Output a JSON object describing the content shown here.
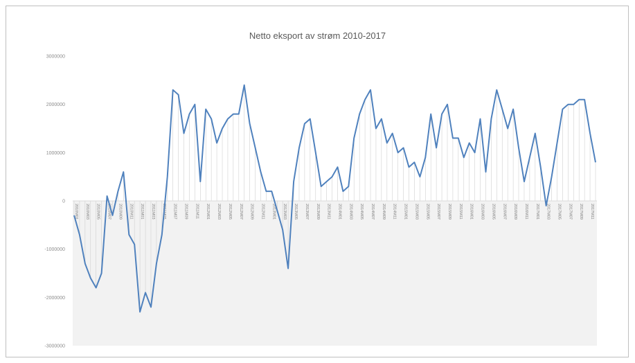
{
  "chart_data": {
    "type": "line",
    "title": "Netto eksport av strøm 2010-2017",
    "xlabel": "",
    "ylabel": "",
    "ylim": [
      -3000000,
      3000000
    ],
    "y_ticks": [
      3000000,
      2000000,
      1000000,
      0,
      -1000000,
      -2000000,
      -3000000
    ],
    "y_tick_labels": [
      "3000000",
      "2000000",
      "1000000",
      "0",
      "-1000000",
      "-2000000",
      "-3000000"
    ],
    "line_color": "#4f81bd",
    "grid": false,
    "drop_lines": true,
    "negative_band_color": "#f2f2f2",
    "x": [
      "2010M01",
      "2010M02",
      "2010M03",
      "2010M04",
      "2010M05",
      "2010M06",
      "2010M07",
      "2010M08",
      "2010M09",
      "2010M10",
      "2010M11",
      "2010M12",
      "2011M01",
      "2011M02",
      "2011M03",
      "2011M04",
      "2011M05",
      "2011M06",
      "2011M07",
      "2011M08",
      "2011M09",
      "2011M10",
      "2011M11",
      "2011M12",
      "2012M01",
      "2012M02",
      "2012M03",
      "2012M04",
      "2012M05",
      "2012M06",
      "2012M07",
      "2012M08",
      "2012M09",
      "2012M10",
      "2012M11",
      "2012M12",
      "2013M01",
      "2013M02",
      "2013M03",
      "2013M04",
      "2013M05",
      "2013M06",
      "2013M07",
      "2013M08",
      "2013M09",
      "2013M10",
      "2013M11",
      "2013M12",
      "2014M01",
      "2014M02",
      "2014M03",
      "2014M04",
      "2014M05",
      "2014M06",
      "2014M07",
      "2014M08",
      "2014M09",
      "2014M10",
      "2014M11",
      "2014M12",
      "2015M01",
      "2015M02",
      "2015M03",
      "2015M04",
      "2015M05",
      "2015M06",
      "2015M07",
      "2015M08",
      "2015M09",
      "2015M10",
      "2015M11",
      "2015M12",
      "2016M01",
      "2016M02",
      "2016M03",
      "2016M04",
      "2016M05",
      "2016M06",
      "2016M07",
      "2016M08",
      "2016M09",
      "2016M10",
      "2016M11",
      "2016M12",
      "2017M01",
      "2017M02",
      "2017M03",
      "2017M04",
      "2017M05",
      "2017M06",
      "2017M07",
      "2017M08",
      "2017M09",
      "2017M10",
      "2017M11",
      "2017M12"
    ],
    "x_tick_labels": [
      "2010M01",
      "2010M03",
      "2010M05",
      "2010M07",
      "2010M09",
      "2010M11",
      "2011M01",
      "2011M03",
      "2011M05",
      "2011M07",
      "2011M09",
      "2011M11",
      "2012M01",
      "2012M03",
      "2012M05",
      "2012M07",
      "2012M09",
      "2012M11",
      "2013M01",
      "2013M03",
      "2013M05",
      "2013M07",
      "2013M09",
      "2013M11",
      "2014M01",
      "2014M03",
      "2014M05",
      "2014M07",
      "2014M09",
      "2014M11",
      "2015M01",
      "2015M03",
      "2015M05",
      "2015M07",
      "2015M09",
      "2015M11",
      "2016M01",
      "2016M03",
      "2016M05",
      "2016M07",
      "2016M09",
      "2016M11",
      "2017M01",
      "2017M03",
      "2017M05",
      "2017M07",
      "2017M09",
      "2017M11"
    ],
    "series": [
      {
        "values": [
          -300000,
          -700000,
          -1300000,
          -1600000,
          -1800000,
          -1500000,
          100000,
          -300000,
          200000,
          600000,
          -700000,
          -900000,
          -2300000,
          -1900000,
          -2200000,
          -1300000,
          -700000,
          500000,
          2300000,
          2200000,
          1400000,
          1800000,
          2000000,
          400000,
          1900000,
          1700000,
          1200000,
          1500000,
          1700000,
          1800000,
          1800000,
          2400000,
          1600000,
          1100000,
          600000,
          200000,
          200000,
          -200000,
          -600000,
          -1400000,
          400000,
          1100000,
          1600000,
          1700000,
          1000000,
          300000,
          400000,
          500000,
          700000,
          200000,
          300000,
          1300000,
          1800000,
          2100000,
          2300000,
          1500000,
          1700000,
          1200000,
          1400000,
          1000000,
          1100000,
          700000,
          800000,
          500000,
          900000,
          1800000,
          1100000,
          1800000,
          2000000,
          1300000,
          1300000,
          900000,
          1200000,
          1000000,
          1700000,
          600000,
          1700000,
          2300000,
          1900000,
          1500000,
          1900000,
          1100000,
          400000,
          900000,
          1400000,
          700000,
          -100000,
          500000,
          1200000,
          1900000,
          2000000,
          2000000,
          2100000,
          2100000,
          1400000,
          800000
        ]
      }
    ]
  }
}
